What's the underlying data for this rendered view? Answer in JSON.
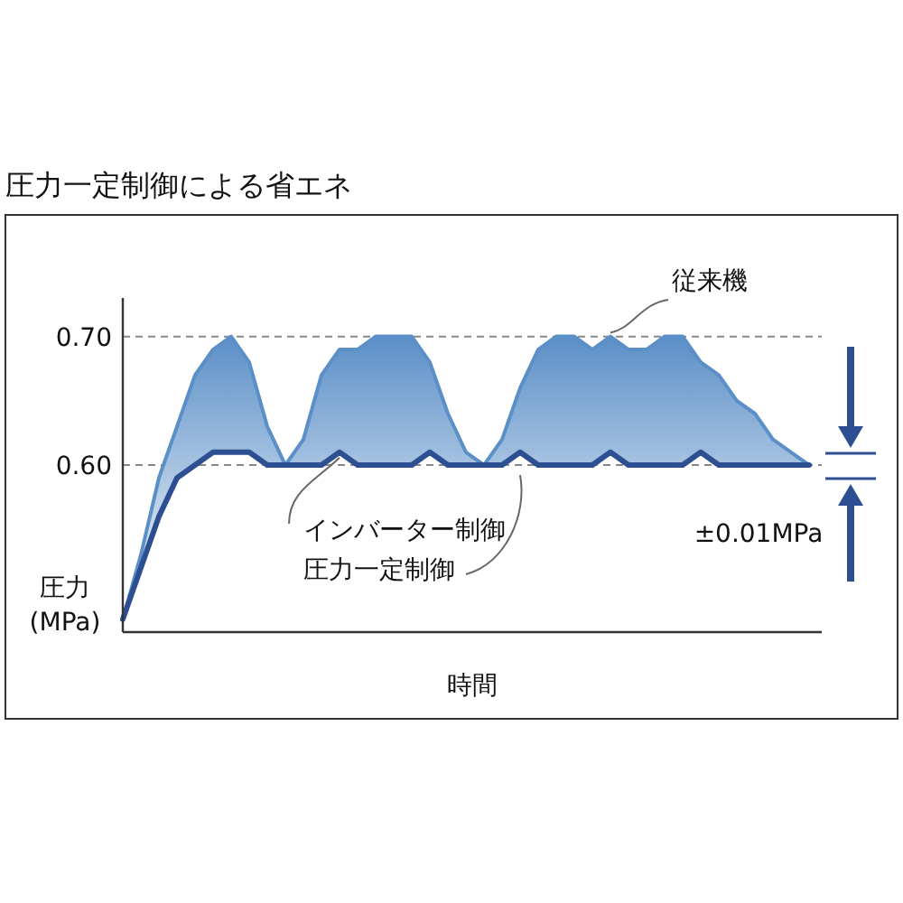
{
  "chart_data": {
    "type": "line",
    "title": "圧力一定制御による省エネ",
    "xlabel": "時間",
    "ylabel": "圧力 (MPa)",
    "categories": [
      null,
      null,
      null,
      null,
      null,
      null,
      null,
      null,
      null,
      null,
      null,
      null,
      null,
      null,
      null,
      null,
      null,
      null,
      null,
      null,
      null,
      null,
      null,
      null,
      null,
      null,
      null,
      null,
      null,
      null,
      null,
      null,
      null,
      null,
      null,
      null,
      null,
      null,
      null
    ],
    "series": [
      {
        "name": "従来機",
        "type": "area",
        "color": "#5b8fc7",
        "values": [
          0.48,
          0.53,
          0.59,
          0.63,
          0.67,
          0.69,
          0.7,
          0.68,
          0.63,
          0.6,
          0.62,
          0.67,
          0.69,
          0.69,
          0.7,
          0.7,
          0.7,
          0.68,
          0.64,
          0.61,
          0.6,
          0.62,
          0.66,
          0.69,
          0.7,
          0.7,
          0.69,
          0.7,
          0.69,
          0.69,
          0.7,
          0.7,
          0.68,
          0.67,
          0.65,
          0.64,
          0.62,
          0.61,
          0.6
        ]
      },
      {
        "name": "インバーター制御",
        "color": "#2d4f91",
        "values": [
          0.48,
          0.52,
          0.56,
          0.59,
          0.6,
          0.61,
          0.61,
          0.61,
          0.6,
          0.6,
          0.6,
          0.6,
          0.61,
          0.6,
          0.6,
          0.6,
          0.6,
          0.61,
          0.6,
          0.6,
          0.6,
          0.6,
          0.61,
          0.6,
          0.6,
          0.6,
          0.6,
          0.61,
          0.6,
          0.6,
          0.6,
          0.6,
          0.61,
          0.6,
          0.6,
          0.6,
          0.6,
          0.6,
          0.6
        ]
      }
    ],
    "ylim": [
      0.47,
      0.73
    ],
    "yticks": [
      {
        "value": 0.6,
        "label": "0.60"
      },
      {
        "value": 0.7,
        "label": "0.70"
      }
    ],
    "tick_labels": "y",
    "ref_lines": [
      {
        "axis": "y",
        "value": 0.7,
        "color": "#888888",
        "line_style": "dashed"
      },
      {
        "axis": "y",
        "value": 0.6,
        "color": "#888888",
        "line_style": "dashed"
      }
    ],
    "annotations": [
      "圧力一定制御",
      "±0.01MPa"
    ],
    "grid": false,
    "marker": "none",
    "line_style": "solid"
  }
}
